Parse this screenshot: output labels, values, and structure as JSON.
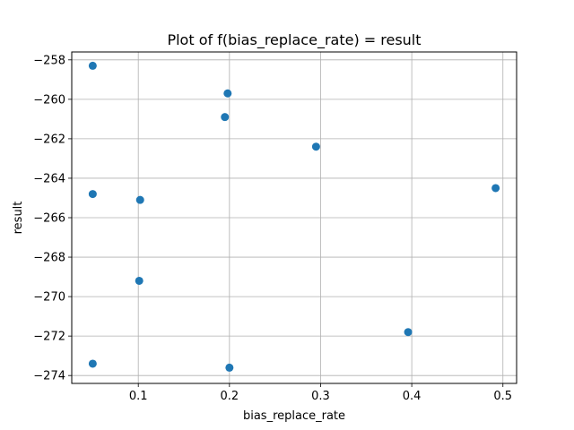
{
  "chart_data": {
    "type": "scatter",
    "title": "Plot of f(bias_replace_rate) = result",
    "xlabel": "bias_replace_rate",
    "ylabel": "result",
    "xlim": [
      0.027,
      0.515
    ],
    "ylim": [
      -274.4,
      -257.6
    ],
    "xticks": [
      0.1,
      0.2,
      0.3,
      0.4,
      0.5
    ],
    "xtick_labels": [
      "0.1",
      "0.2",
      "0.3",
      "0.4",
      "0.5"
    ],
    "yticks": [
      -274,
      -272,
      -270,
      -268,
      -266,
      -264,
      -262,
      -260,
      -258
    ],
    "ytick_labels": [
      "−274",
      "−272",
      "−270",
      "−268",
      "−266",
      "−264",
      "−262",
      "−260",
      "−258"
    ],
    "grid": true,
    "marker_color": "#1f77b4",
    "points": [
      {
        "x": 0.05,
        "y": -258.3
      },
      {
        "x": 0.198,
        "y": -259.7
      },
      {
        "x": 0.195,
        "y": -260.9
      },
      {
        "x": 0.295,
        "y": -262.4
      },
      {
        "x": 0.492,
        "y": -264.5
      },
      {
        "x": 0.05,
        "y": -264.8
      },
      {
        "x": 0.102,
        "y": -265.1
      },
      {
        "x": 0.101,
        "y": -269.2
      },
      {
        "x": 0.396,
        "y": -271.8
      },
      {
        "x": 0.05,
        "y": -273.4
      },
      {
        "x": 0.2,
        "y": -273.6
      }
    ]
  }
}
